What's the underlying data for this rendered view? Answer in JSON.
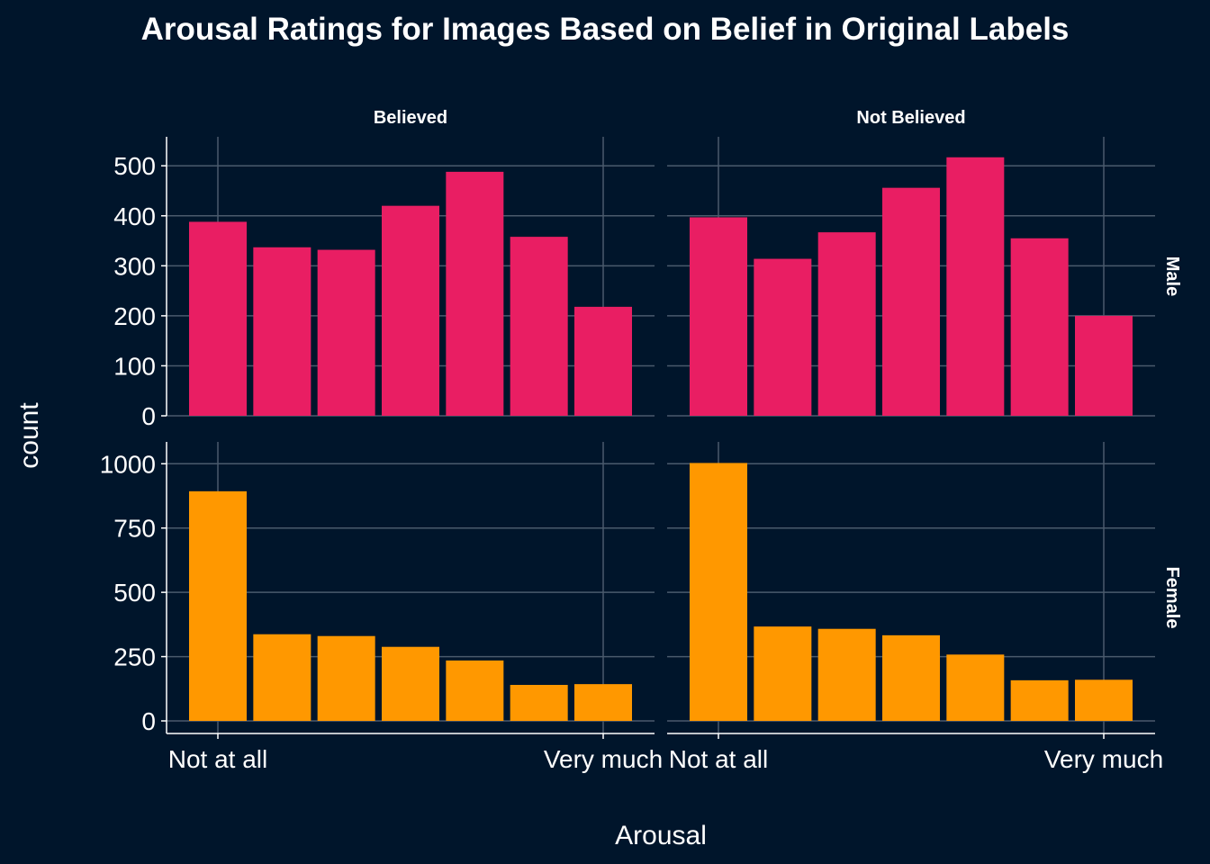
{
  "chart_data": {
    "type": "bar",
    "title": "Arousal Ratings for Images Based on Belief in Original Labels",
    "xlabel": "Arousal",
    "ylabel": "count",
    "x_tick_labels": [
      {
        "label": "Not at all",
        "rating": 1
      },
      {
        "label": "Very much",
        "rating": 7
      }
    ],
    "categories": [
      1,
      2,
      3,
      4,
      5,
      6,
      7
    ],
    "facet_columns": [
      "Believed",
      "Not Believed"
    ],
    "facet_rows": [
      "Male",
      "Female"
    ],
    "grid": true,
    "background": "#00152b",
    "panels": [
      {
        "row": "Male",
        "column": "Believed",
        "color": "#e91e63",
        "ylim": [
          0,
          540
        ],
        "yticks": [
          0,
          100,
          200,
          300,
          400,
          500
        ],
        "values": [
          388,
          337,
          332,
          420,
          488,
          358,
          218
        ]
      },
      {
        "row": "Male",
        "column": "Not Believed",
        "color": "#e91e63",
        "ylim": [
          0,
          540
        ],
        "yticks": [
          0,
          100,
          200,
          300,
          400,
          500
        ],
        "values": [
          397,
          314,
          367,
          456,
          517,
          355,
          200
        ]
      },
      {
        "row": "Female",
        "column": "Believed",
        "color": "#ff9800",
        "ylim": [
          0,
          1050
        ],
        "yticks": [
          0,
          250,
          500,
          750,
          1000
        ],
        "values": [
          893,
          337,
          330,
          288,
          235,
          140,
          143
        ]
      },
      {
        "row": "Female",
        "column": "Not Believed",
        "color": "#ff9800",
        "ylim": [
          0,
          1050
        ],
        "yticks": [
          0,
          250,
          500,
          750,
          1000
        ],
        "values": [
          1003,
          367,
          358,
          333,
          258,
          158,
          160
        ]
      }
    ]
  }
}
